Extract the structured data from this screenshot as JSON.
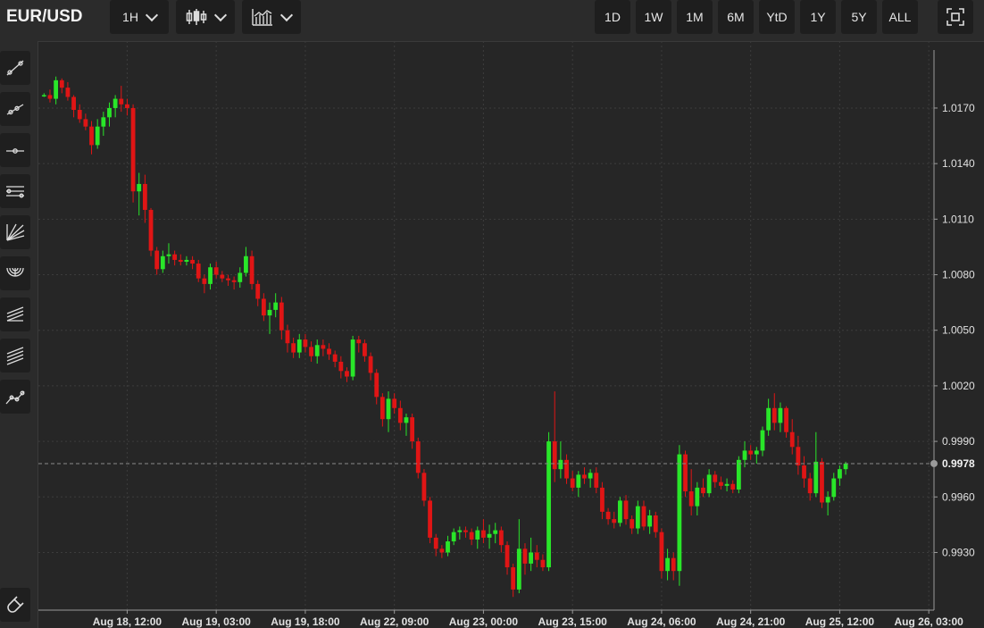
{
  "header": {
    "symbol": "EUR/USD",
    "interval": "1H",
    "ranges": [
      "1D",
      "1W",
      "1M",
      "6M",
      "YtD",
      "1Y",
      "5Y",
      "ALL"
    ]
  },
  "sidebar": {
    "tools": [
      "trend-line-icon",
      "ray-icon",
      "horizontal-line-icon",
      "parallel-channel-icon",
      "fan-icon",
      "arc-icon",
      "pitchfork-icon",
      "channel-lines-icon",
      "multi-point-line-icon"
    ],
    "bottom_tool": "magnet-icon"
  },
  "colors": {
    "up": "#29e629",
    "down": "#e01515",
    "background": "#262626",
    "grid": "#3c3c3c",
    "axis_text": "#e0e0e0"
  },
  "chart_data": {
    "type": "candlestick",
    "interval": "1H",
    "grid": true,
    "current_price": 0.9978,
    "ylim": [
      0.9906,
      1.0198
    ],
    "y_ticks": [
      0.993,
      0.996,
      0.999,
      1.002,
      1.005,
      1.008,
      1.011,
      1.014,
      1.017
    ],
    "y_tick_labels": [
      "0.9930",
      "0.9960",
      "0.9990",
      "1.0020",
      "1.0050",
      "1.0080",
      "1.0110",
      "1.0140",
      "1.0170"
    ],
    "x_ticks": [
      {
        "i": 14.5,
        "label": "Aug 18, 12:00"
      },
      {
        "i": 29.5,
        "label": "Aug 19, 03:00"
      },
      {
        "i": 44.5,
        "label": "Aug 19, 18:00"
      },
      {
        "i": 59.5,
        "label": "Aug 22, 09:00"
      },
      {
        "i": 74.5,
        "label": "Aug 23, 00:00"
      },
      {
        "i": 89.5,
        "label": "Aug 23, 15:00"
      },
      {
        "i": 104.5,
        "label": "Aug 24, 06:00"
      },
      {
        "i": 119.5,
        "label": "Aug 24, 21:00"
      },
      {
        "i": 134.5,
        "label": "Aug 25, 12:00"
      },
      {
        "i": 149.5,
        "label": "Aug 26, 03:00"
      }
    ],
    "candles": [
      [
        1.0177,
        1.0178,
        1.0176,
        1.0177
      ],
      [
        1.0177,
        1.018,
        1.0173,
        1.0175
      ],
      [
        1.0175,
        1.0187,
        1.0172,
        1.0185
      ],
      [
        1.0185,
        1.0186,
        1.0178,
        1.0181
      ],
      [
        1.0181,
        1.0184,
        1.0174,
        1.0176
      ],
      [
        1.0176,
        1.0177,
        1.0165,
        1.0169
      ],
      [
        1.0169,
        1.0172,
        1.0162,
        1.0164
      ],
      [
        1.0164,
        1.0167,
        1.0158,
        1.016
      ],
      [
        1.016,
        1.0163,
        1.0145,
        1.015
      ],
      [
        1.015,
        1.0164,
        1.0148,
        1.016
      ],
      [
        1.016,
        1.0168,
        1.0155,
        1.0165
      ],
      [
        1.0165,
        1.0173,
        1.016,
        1.017
      ],
      [
        1.017,
        1.0177,
        1.0165,
        1.0175
      ],
      [
        1.0175,
        1.0182,
        1.0168,
        1.0172
      ],
      [
        1.0172,
        1.0175,
        1.0166,
        1.017
      ],
      [
        1.017,
        1.0172,
        1.0119,
        1.0125
      ],
      [
        1.0125,
        1.0135,
        1.0112,
        1.0129
      ],
      [
        1.0129,
        1.0134,
        1.0108,
        1.0115
      ],
      [
        1.0115,
        1.0116,
        1.009,
        1.0093
      ],
      [
        1.0093,
        1.0095,
        1.008,
        1.0083
      ],
      [
        1.0083,
        1.0093,
        1.0081,
        1.009
      ],
      [
        1.009,
        1.0097,
        1.0086,
        1.0091
      ],
      [
        1.0091,
        1.0093,
        1.0085,
        1.0088
      ],
      [
        1.0088,
        1.0091,
        1.0085,
        1.0087
      ],
      [
        1.0087,
        1.009,
        1.0085,
        1.0088
      ],
      [
        1.0088,
        1.009,
        1.0083,
        1.0086
      ],
      [
        1.0086,
        1.0088,
        1.0076,
        1.0078
      ],
      [
        1.0078,
        1.008,
        1.007,
        1.0075
      ],
      [
        1.0075,
        1.0086,
        1.0072,
        1.0084
      ],
      [
        1.0084,
        1.0087,
        1.0078,
        1.008
      ],
      [
        1.008,
        1.0082,
        1.0076,
        1.0078
      ],
      [
        1.0078,
        1.008,
        1.0074,
        1.0077
      ],
      [
        1.0077,
        1.0079,
        1.0072,
        1.0076
      ],
      [
        1.0076,
        1.0084,
        1.0073,
        1.0081
      ],
      [
        1.0081,
        1.0095,
        1.0079,
        1.009
      ],
      [
        1.009,
        1.0093,
        1.0072,
        1.0075
      ],
      [
        1.0075,
        1.0077,
        1.0063,
        1.0067
      ],
      [
        1.0067,
        1.007,
        1.0055,
        1.0058
      ],
      [
        1.0058,
        1.0065,
        1.0048,
        1.0061
      ],
      [
        1.0061,
        1.007,
        1.0057,
        1.0065
      ],
      [
        1.0065,
        1.0068,
        1.0045,
        1.005
      ],
      [
        1.005,
        1.0053,
        1.0038,
        1.0043
      ],
      [
        1.0043,
        1.0046,
        1.0035,
        1.0038
      ],
      [
        1.0038,
        1.0048,
        1.0035,
        1.0045
      ],
      [
        1.0045,
        1.0048,
        1.0038,
        1.0041
      ],
      [
        1.0041,
        1.0044,
        1.0033,
        1.0036
      ],
      [
        1.0036,
        1.0045,
        1.0032,
        1.0042
      ],
      [
        1.0042,
        1.0045,
        1.0036,
        1.004
      ],
      [
        1.004,
        1.0043,
        1.0034,
        1.0037
      ],
      [
        1.0037,
        1.0039,
        1.003,
        1.0033
      ],
      [
        1.0033,
        1.0036,
        1.0024,
        1.0028
      ],
      [
        1.0028,
        1.003,
        1.0022,
        1.0025
      ],
      [
        1.0025,
        1.0047,
        1.0023,
        1.0045
      ],
      [
        1.0045,
        1.0047,
        1.0038,
        1.0043
      ],
      [
        1.0043,
        1.0045,
        1.0033,
        1.0036
      ],
      [
        1.0036,
        1.0038,
        1.0023,
        1.0027
      ],
      [
        1.0027,
        1.0029,
        1.001,
        1.0014
      ],
      [
        1.0014,
        1.0016,
        0.9998,
        1.0002
      ],
      [
        1.0002,
        1.0017,
        0.9995,
        1.0013
      ],
      [
        1.0013,
        1.0016,
        1.0005,
        1.0008
      ],
      [
        1.0008,
        1.0012,
        0.9996,
        1.0
      ],
      [
        1.0,
        1.0005,
        0.9993,
        1.0003
      ],
      [
        1.0003,
        1.0005,
        0.9986,
        0.999
      ],
      [
        0.999,
        0.9992,
        0.997,
        0.9973
      ],
      [
        0.9973,
        0.9975,
        0.9955,
        0.9958
      ],
      [
        0.9958,
        0.996,
        0.9935,
        0.9938
      ],
      [
        0.9938,
        0.994,
        0.9928,
        0.9932
      ],
      [
        0.9932,
        0.9934,
        0.9927,
        0.993
      ],
      [
        0.993,
        0.9939,
        0.9928,
        0.9936
      ],
      [
        0.9936,
        0.9943,
        0.9934,
        0.9941
      ],
      [
        0.9941,
        0.9944,
        0.9937,
        0.9942
      ],
      [
        0.9942,
        0.9944,
        0.9938,
        0.9941
      ],
      [
        0.9941,
        0.9943,
        0.9934,
        0.9937
      ],
      [
        0.9937,
        0.9944,
        0.9932,
        0.9942
      ],
      [
        0.9942,
        0.9948,
        0.9935,
        0.9938
      ],
      [
        0.9938,
        0.9945,
        0.9932,
        0.994
      ],
      [
        0.994,
        0.9946,
        0.9935,
        0.9942
      ],
      [
        0.9942,
        0.9944,
        0.993,
        0.9934
      ],
      [
        0.9934,
        0.9936,
        0.9918,
        0.9922
      ],
      [
        0.9922,
        0.9924,
        0.9906,
        0.991
      ],
      [
        0.991,
        0.9948,
        0.9908,
        0.9932
      ],
      [
        0.9932,
        0.9935,
        0.9918,
        0.9924
      ],
      [
        0.9924,
        0.9938,
        0.992,
        0.993
      ],
      [
        0.993,
        0.9934,
        0.9922,
        0.9926
      ],
      [
        0.9926,
        0.9929,
        0.992,
        0.9922
      ],
      [
        0.9922,
        0.9995,
        0.992,
        0.999
      ],
      [
        0.999,
        1.0017,
        0.9968,
        0.9975
      ],
      [
        0.9975,
        0.999,
        0.997,
        0.998
      ],
      [
        0.998,
        0.9983,
        0.9967,
        0.997
      ],
      [
        0.997,
        0.9974,
        0.9963,
        0.9965
      ],
      [
        0.9965,
        0.9974,
        0.996,
        0.9972
      ],
      [
        0.9972,
        0.9976,
        0.9967,
        0.997
      ],
      [
        0.997,
        0.9975,
        0.9965,
        0.9973
      ],
      [
        0.9973,
        0.9976,
        0.9962,
        0.9965
      ],
      [
        0.9965,
        0.9968,
        0.9948,
        0.9952
      ],
      [
        0.9952,
        0.9954,
        0.9945,
        0.9948
      ],
      [
        0.9948,
        0.9952,
        0.9943,
        0.9946
      ],
      [
        0.9946,
        0.996,
        0.9944,
        0.9958
      ],
      [
        0.9958,
        0.9961,
        0.9945,
        0.9948
      ],
      [
        0.9948,
        0.995,
        0.994,
        0.9943
      ],
      [
        0.9943,
        0.9958,
        0.994,
        0.9955
      ],
      [
        0.9955,
        0.9958,
        0.9942,
        0.9944
      ],
      [
        0.9944,
        0.9953,
        0.994,
        0.995
      ],
      [
        0.995,
        0.9952,
        0.9938,
        0.9941
      ],
      [
        0.9941,
        0.9943,
        0.9916,
        0.992
      ],
      [
        0.992,
        0.9932,
        0.9915,
        0.9927
      ],
      [
        0.9927,
        0.993,
        0.9915,
        0.992
      ],
      [
        0.992,
        0.9988,
        0.9912,
        0.9983
      ],
      [
        0.9983,
        0.9985,
        0.996,
        0.9963
      ],
      [
        0.9963,
        0.9975,
        0.995,
        0.9955
      ],
      [
        0.9955,
        0.9968,
        0.995,
        0.9965
      ],
      [
        0.9965,
        0.997,
        0.996,
        0.9962
      ],
      [
        0.9962,
        0.9975,
        0.996,
        0.9972
      ],
      [
        0.9972,
        0.9974,
        0.9965,
        0.9968
      ],
      [
        0.9968,
        0.9971,
        0.9964,
        0.9966
      ],
      [
        0.9966,
        0.997,
        0.9963,
        0.9967
      ],
      [
        0.9967,
        0.9969,
        0.9962,
        0.9964
      ],
      [
        0.9964,
        0.9982,
        0.9962,
        0.998
      ],
      [
        0.998,
        0.999,
        0.9976,
        0.9985
      ],
      [
        0.9985,
        0.9988,
        0.998,
        0.9983
      ],
      [
        0.9983,
        0.9987,
        0.9978,
        0.9985
      ],
      [
        0.9985,
        0.9998,
        0.9982,
        0.9996
      ],
      [
        0.9996,
        1.0013,
        0.9993,
        1.0008
      ],
      [
        1.0008,
        1.0016,
        0.9996,
        1.0
      ],
      [
        1.0,
        1.0011,
        0.9995,
        1.0008
      ],
      [
        1.0008,
        1.0009,
        0.9992,
        0.9995
      ],
      [
        0.9995,
        1.0002,
        0.9983,
        0.9987
      ],
      [
        0.9987,
        0.9993,
        0.9972,
        0.9977
      ],
      [
        0.9977,
        0.9982,
        0.9965,
        0.997
      ],
      [
        0.997,
        0.9973,
        0.9958,
        0.9962
      ],
      [
        0.9962,
        0.9995,
        0.996,
        0.9979
      ],
      [
        0.9979,
        0.9981,
        0.9954,
        0.9957
      ],
      [
        0.9957,
        0.9963,
        0.995,
        0.996
      ],
      [
        0.996,
        0.9973,
        0.9958,
        0.997
      ],
      [
        0.997,
        0.9977,
        0.9966,
        0.9975
      ],
      [
        0.9975,
        0.9979,
        0.9972,
        0.9978
      ]
    ]
  }
}
